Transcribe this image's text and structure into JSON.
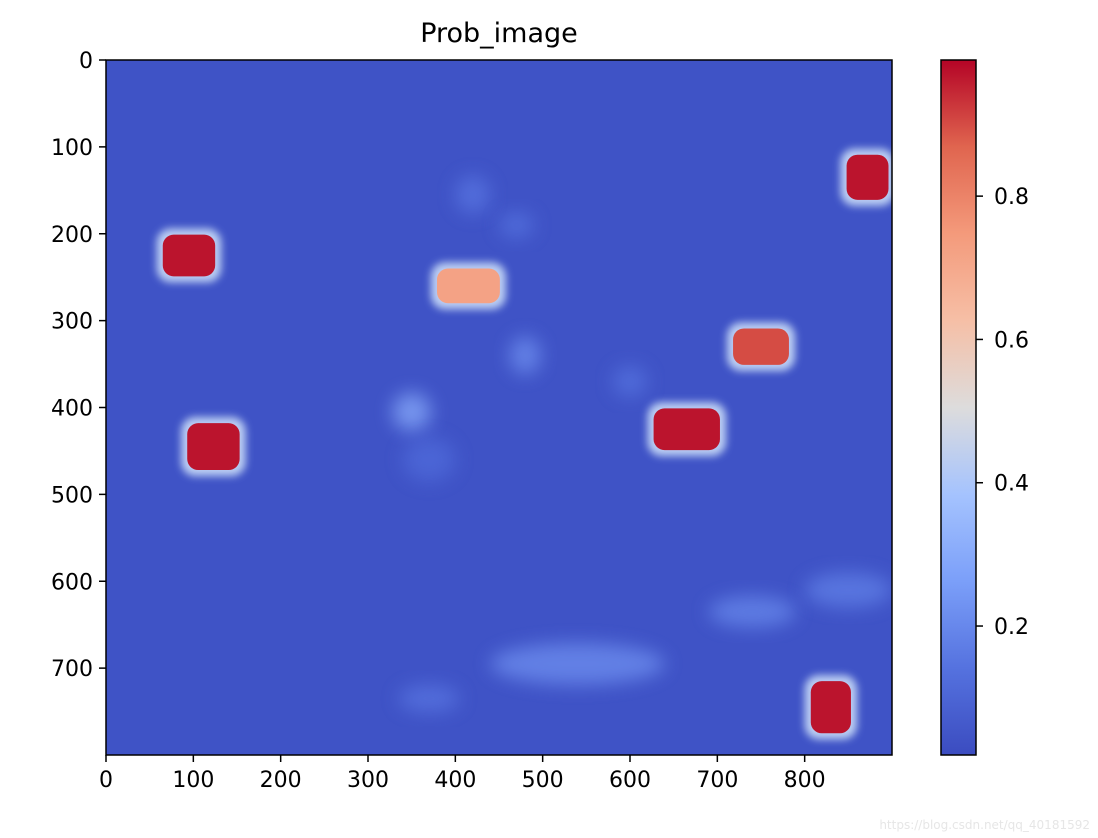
{
  "chart_data": {
    "type": "heatmap",
    "title": "Prob_image",
    "xlabel": "",
    "ylabel": "",
    "x_range": [
      0,
      900
    ],
    "y_range": [
      800,
      0
    ],
    "y_axis_inverted": true,
    "x_ticks": [
      0,
      100,
      200,
      300,
      400,
      500,
      600,
      700,
      800
    ],
    "y_ticks": [
      0,
      100,
      200,
      300,
      400,
      500,
      600,
      700
    ],
    "colormap": "coolwarm",
    "colorbar": {
      "range": [
        0.02,
        0.99
      ],
      "ticks": [
        0.2,
        0.4,
        0.6,
        0.8
      ],
      "tick_labels": [
        "0.2",
        "0.4",
        "0.6",
        "0.8"
      ],
      "placement": "right"
    },
    "background_value": 0.05,
    "high_blobs": [
      {
        "x": 872,
        "y": 135,
        "rx": 24,
        "ry": 26,
        "value": 0.97
      },
      {
        "x": 95,
        "y": 225,
        "rx": 30,
        "ry": 24,
        "value": 0.97
      },
      {
        "x": 415,
        "y": 260,
        "rx": 36,
        "ry": 20,
        "value": 0.72
      },
      {
        "x": 750,
        "y": 330,
        "rx": 32,
        "ry": 21,
        "value": 0.9
      },
      {
        "x": 665,
        "y": 425,
        "rx": 38,
        "ry": 24,
        "value": 0.97
      },
      {
        "x": 123,
        "y": 445,
        "rx": 30,
        "ry": 27,
        "value": 0.97
      },
      {
        "x": 830,
        "y": 745,
        "rx": 23,
        "ry": 30,
        "value": 0.97
      }
    ],
    "faint_regions": [
      {
        "x": 350,
        "y": 405,
        "rx": 22,
        "ry": 22,
        "value": 0.3
      },
      {
        "x": 480,
        "y": 340,
        "rx": 18,
        "ry": 22,
        "value": 0.22
      },
      {
        "x": 420,
        "y": 155,
        "rx": 20,
        "ry": 22,
        "value": 0.15
      },
      {
        "x": 470,
        "y": 190,
        "rx": 20,
        "ry": 15,
        "value": 0.14
      },
      {
        "x": 600,
        "y": 370,
        "rx": 20,
        "ry": 18,
        "value": 0.14
      },
      {
        "x": 540,
        "y": 695,
        "rx": 100,
        "ry": 24,
        "value": 0.22
      },
      {
        "x": 740,
        "y": 635,
        "rx": 50,
        "ry": 18,
        "value": 0.2
      },
      {
        "x": 850,
        "y": 610,
        "rx": 50,
        "ry": 20,
        "value": 0.18
      },
      {
        "x": 370,
        "y": 735,
        "rx": 35,
        "ry": 16,
        "value": 0.15
      },
      {
        "x": 370,
        "y": 460,
        "rx": 30,
        "ry": 25,
        "value": 0.12
      }
    ]
  },
  "watermark": "https://blog.csdn.net/qq_40181592"
}
